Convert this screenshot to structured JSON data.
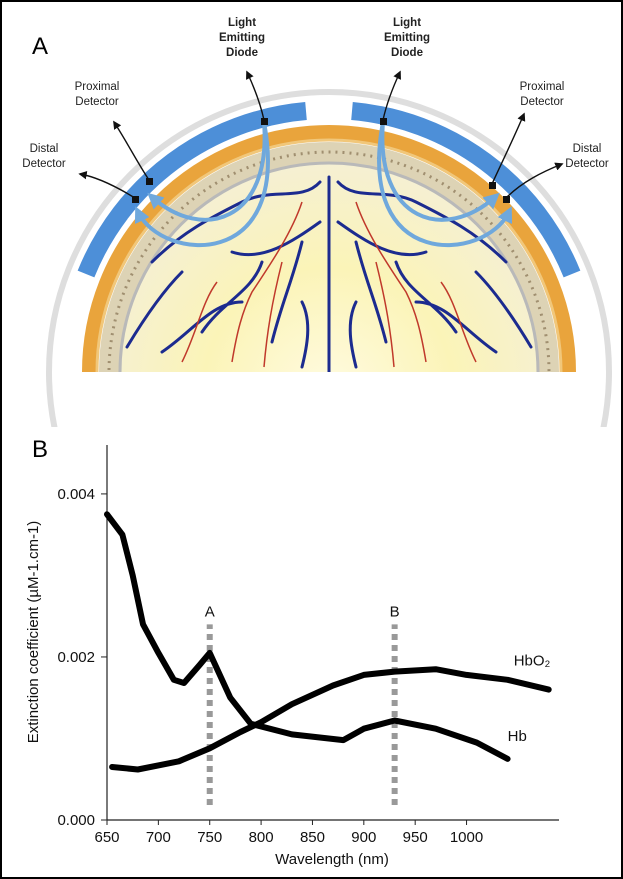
{
  "panel_a": {
    "panel_label": "A",
    "labels": [
      {
        "lines": [
          "Light",
          "Emitting",
          "Diode"
        ]
      },
      {
        "lines": [
          "Proximal",
          "Detector"
        ]
      },
      {
        "lines": [
          "Distal",
          "Detector"
        ]
      },
      {
        "lines": [
          "Light",
          "Emitting",
          "Diode"
        ]
      },
      {
        "lines": [
          "Proximal",
          "Detector"
        ]
      },
      {
        "lines": [
          "Distal",
          "Detector"
        ]
      }
    ]
  },
  "chart_data": {
    "type": "line",
    "panel_label": "B",
    "x_label": "Wavelength (nm)",
    "y_label": "Extinction coefficient (µM-1.cm-1)",
    "xlim": [
      650,
      1090
    ],
    "xticks": [
      650,
      700,
      750,
      800,
      850,
      900,
      950,
      1000
    ],
    "ylim": [
      0,
      0.0046
    ],
    "yticks": [
      {
        "value": 0,
        "label": "0.000"
      },
      {
        "value": 0.002,
        "label": "0.002"
      },
      {
        "value": 0.004,
        "label": "0.004"
      }
    ],
    "markers": [
      {
        "x": 750,
        "label": "A"
      },
      {
        "x": 930,
        "label": "B"
      }
    ],
    "series": [
      {
        "name": "Hb",
        "color": "#000000",
        "x": [
          650,
          665,
          675,
          685,
          700,
          715,
          725,
          740,
          750,
          770,
          790,
          830,
          880,
          900,
          930,
          970,
          1010,
          1040
        ],
        "values": [
          0.00375,
          0.0035,
          0.003,
          0.0024,
          0.00205,
          0.00172,
          0.00168,
          0.0019,
          0.00205,
          0.0015,
          0.00118,
          0.00105,
          0.00098,
          0.00112,
          0.00122,
          0.00112,
          0.00095,
          0.00075
        ]
      },
      {
        "name": "HbO₂",
        "color": "#000000",
        "x": [
          655,
          680,
          720,
          750,
          780,
          800,
          830,
          870,
          900,
          930,
          970,
          1000,
          1040,
          1080
        ],
        "values": [
          0.00065,
          0.00062,
          0.00072,
          0.00088,
          0.00108,
          0.0012,
          0.00142,
          0.00165,
          0.00178,
          0.00182,
          0.00185,
          0.00178,
          0.00172,
          0.0016
        ]
      }
    ]
  }
}
